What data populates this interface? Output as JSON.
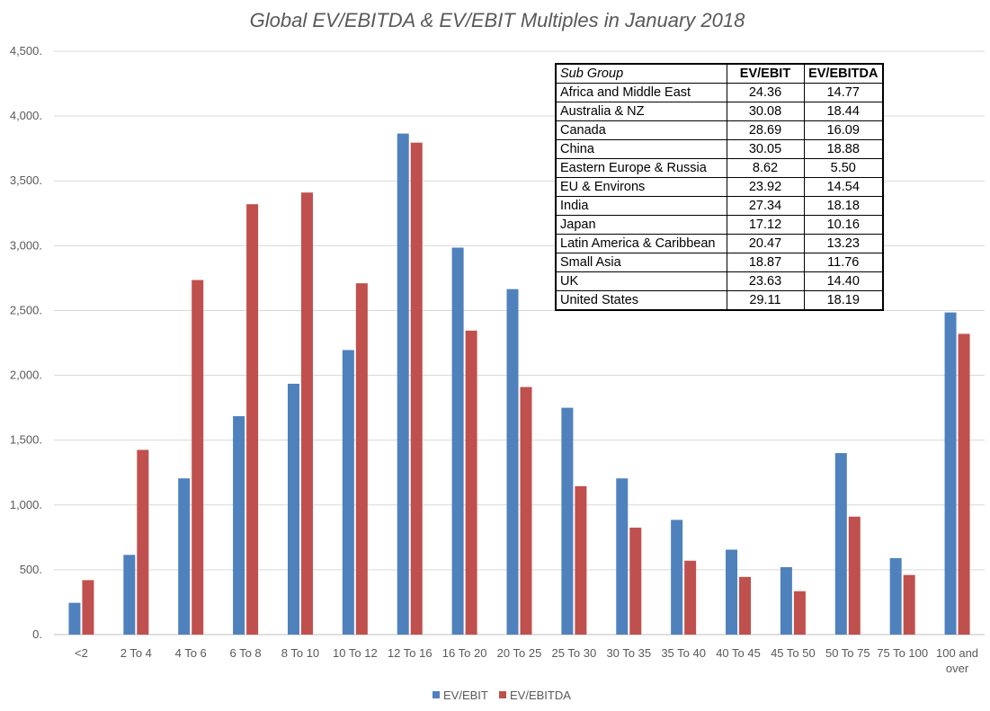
{
  "chart_data": {
    "type": "bar",
    "title": "Global EV/EBITDA & EV/EBIT Multiples in January 2018",
    "xlabel": "",
    "ylabel": "",
    "ylim": [
      0,
      4500
    ],
    "yticks": [
      "0.",
      "500.",
      "1,000.",
      "1,500.",
      "2,000.",
      "2,500.",
      "3,000.",
      "3,500.",
      "4,000.",
      "4,500."
    ],
    "ytick_values": [
      0,
      500,
      1000,
      1500,
      2000,
      2500,
      3000,
      3500,
      4000,
      4500
    ],
    "categories": [
      "<2",
      "2 To 4",
      "4 To 6",
      "6 To 8",
      "8 To 10",
      "10 To 12",
      "12 To 16",
      "16 To 20",
      "20 To 25",
      "25 To 30",
      "30 To 35",
      "35 To 40",
      "40 To 45",
      "45 To 50",
      "50 To 75",
      "75 To 100",
      "100 and over"
    ],
    "series": [
      {
        "name": "EV/EBIT",
        "color": "#4F81BD",
        "values": [
          245,
          615,
          1205,
          1685,
          1935,
          2195,
          3865,
          2985,
          2665,
          1750,
          1205,
          885,
          655,
          520,
          1400,
          590,
          2485
        ]
      },
      {
        "name": "EV/EBITDA",
        "color": "#C0504D",
        "values": [
          420,
          1425,
          2735,
          3320,
          3410,
          2710,
          3795,
          2345,
          1910,
          1145,
          825,
          570,
          445,
          335,
          910,
          460,
          2320
        ]
      }
    ],
    "grid": true,
    "legend_position": "bottom",
    "table": {
      "headers": [
        "Sub Group",
        "EV/EBIT",
        "EV/EBITDA"
      ],
      "rows": [
        [
          "Africa and Middle East",
          "24.36",
          "14.77"
        ],
        [
          "Australia & NZ",
          "30.08",
          "18.44"
        ],
        [
          "Canada",
          "28.69",
          "16.09"
        ],
        [
          "China",
          "30.05",
          "18.88"
        ],
        [
          "Eastern Europe & Russia",
          "8.62",
          "5.50"
        ],
        [
          "EU & Environs",
          "23.92",
          "14.54"
        ],
        [
          "India",
          "27.34",
          "18.18"
        ],
        [
          "Japan",
          "17.12",
          "10.16"
        ],
        [
          "Latin America & Caribbean",
          "20.47",
          "13.23"
        ],
        [
          "Small Asia",
          "18.87",
          "11.76"
        ],
        [
          "UK",
          "23.63",
          "14.40"
        ],
        [
          "United States",
          "29.11",
          "18.19"
        ]
      ]
    }
  }
}
